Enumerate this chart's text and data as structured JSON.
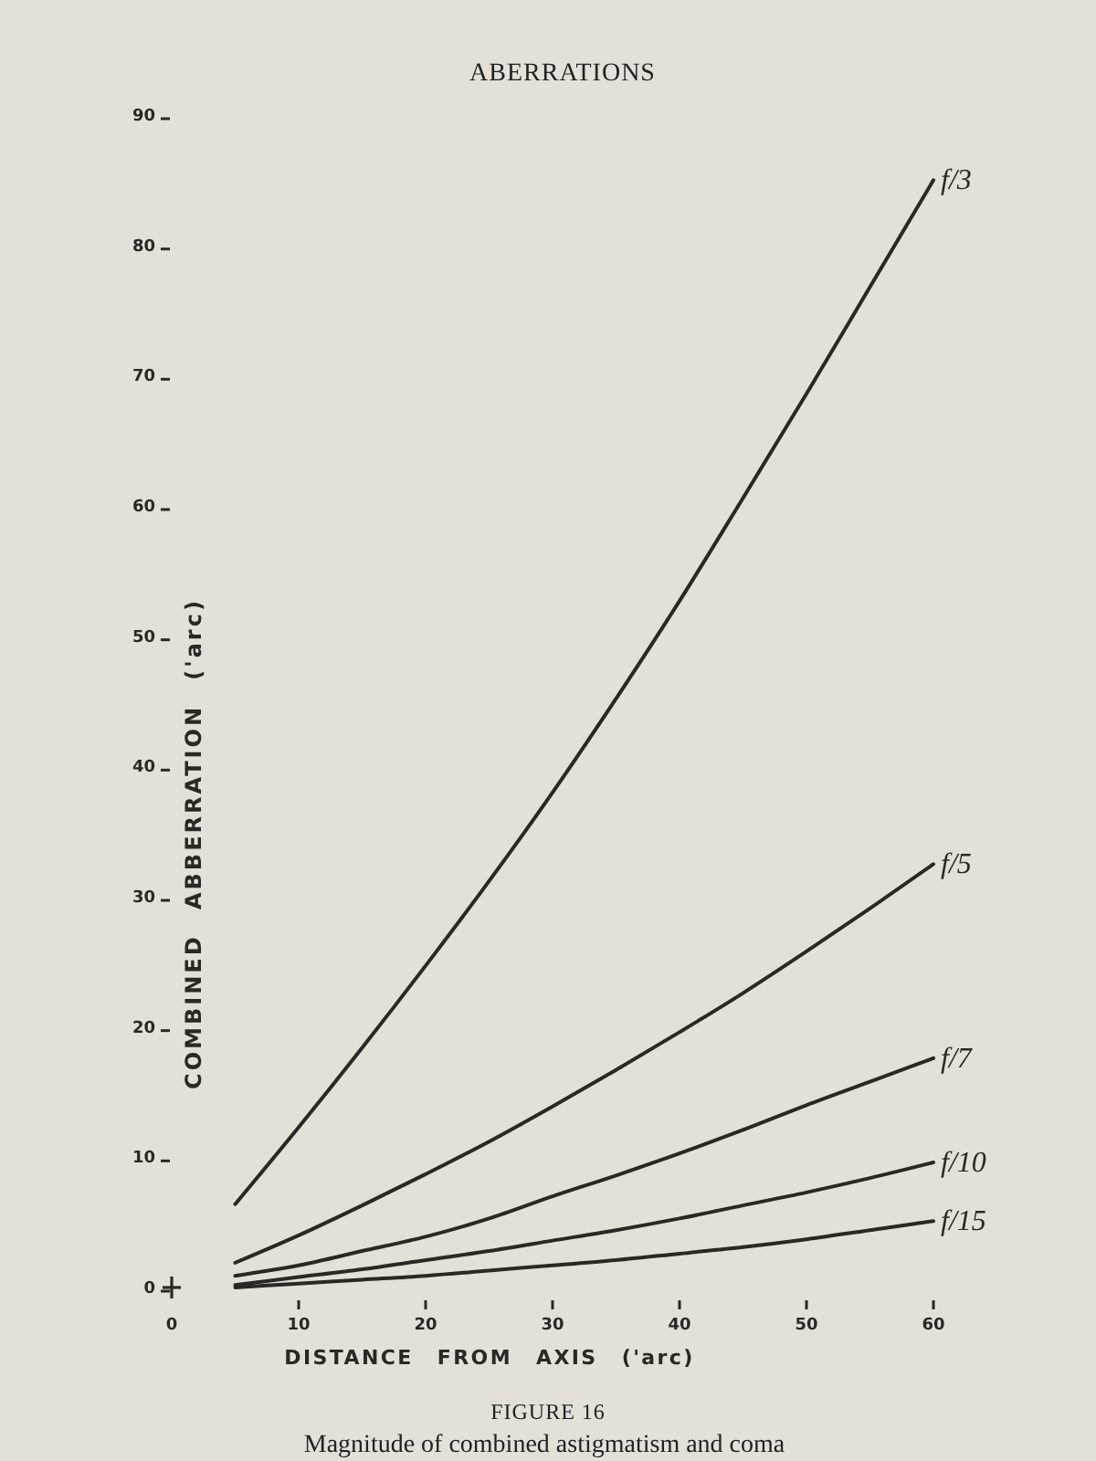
{
  "chart_data": {
    "type": "line",
    "title": "FIGURE 16",
    "subtitle": "Magnitude of combined astigmatism and coma",
    "annotations": [
      "ABERRATIONS"
    ],
    "xlabel": "DISTANCE FROM AXIS ('arc)",
    "ylabel": "COMBINED ABBERRATION ('arc)",
    "x": [
      5,
      10,
      15,
      20,
      25,
      30,
      35,
      40,
      45,
      50,
      55,
      60
    ],
    "series": [
      {
        "name": "f/3",
        "color": "#2b2724",
        "values": [
          6.4,
          12.3,
          18.4,
          24.7,
          31.2,
          38,
          45.2,
          52.7,
          60.6,
          68.6,
          76.8,
          85
        ]
      },
      {
        "name": "f/5",
        "color": "#2b2724",
        "values": [
          1.9,
          4,
          6.3,
          8.7,
          11.2,
          13.9,
          16.7,
          19.6,
          22.6,
          25.8,
          29.1,
          32.5
        ]
      },
      {
        "name": "f/7",
        "color": "#2b2724",
        "values": [
          0.9,
          1.7,
          2.8,
          3.9,
          5.3,
          7,
          8.6,
          10.3,
          12.1,
          14,
          15.8,
          17.6
        ]
      },
      {
        "name": "f/10",
        "color": "#2b2724",
        "values": [
          0.2,
          0.8,
          1.4,
          2.1,
          2.8,
          3.6,
          4.4,
          5.3,
          6.3,
          7.3,
          8.4,
          9.6
        ]
      },
      {
        "name": "f/15",
        "color": "#2b2724",
        "values": [
          0,
          0.3,
          0.6,
          0.9,
          1.3,
          1.7,
          2.1,
          2.6,
          3.1,
          3.7,
          4.4,
          5.1
        ]
      }
    ],
    "xlim": [
      0,
      60
    ],
    "ylim": [
      0,
      90
    ],
    "xticks": [
      0,
      10,
      20,
      30,
      40,
      50,
      60
    ],
    "yticks": [
      0,
      10,
      20,
      30,
      40,
      50,
      60,
      70,
      80,
      90
    ]
  }
}
